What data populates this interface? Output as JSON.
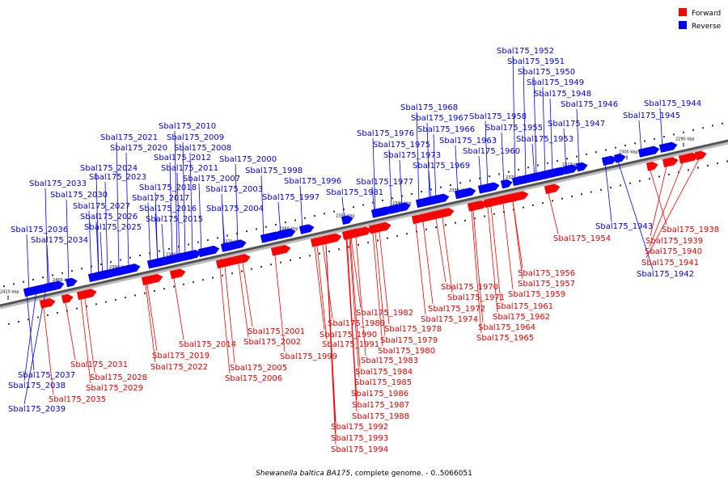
{
  "legend": {
    "forward_label": "Forward",
    "reverse_label": "Reverse",
    "forward_color": "#ff0000",
    "reverse_color": "#0000ff"
  },
  "caption": {
    "organism": "Shewanella baltica BA175",
    "rest": ", complete genome. - 0..5066051"
  },
  "ticks": [
    "2290 kbp",
    "2300 kbp",
    "2310 kbp",
    "2320 kbp",
    "2330 kbp",
    "2340 kbp",
    "2350 kbp",
    "2360 kbp",
    "2370 kbp",
    "2380 kbp",
    "2390 kbp",
    "2400 kbp",
    "2410 kbp"
  ],
  "genes_reverse": [
    "Sbal175_1942",
    "Sbal175_1943",
    "Sbal175_1944",
    "Sbal175_1945",
    "Sbal175_1946",
    "Sbal175_1947",
    "Sbal175_1948",
    "Sbal175_1949",
    "Sbal175_1950",
    "Sbal175_1951",
    "Sbal175_1952",
    "Sbal175_1953",
    "Sbal175_1955",
    "Sbal175_1958",
    "Sbal175_1960",
    "Sbal175_1963",
    "Sbal175_1966",
    "Sbal175_1967",
    "Sbal175_1968",
    "Sbal175_1969",
    "Sbal175_1973",
    "Sbal175_1975",
    "Sbal175_1976",
    "Sbal175_1977",
    "Sbal175_1981",
    "Sbal175_1996",
    "Sbal175_1997",
    "Sbal175_1998",
    "Sbal175_2000",
    "Sbal175_2003",
    "Sbal175_2004",
    "Sbal175_2007",
    "Sbal175_2008",
    "Sbal175_2009",
    "Sbal175_2010",
    "Sbal175_2011",
    "Sbal175_2012",
    "Sbal175_2015",
    "Sbal175_2016",
    "Sbal175_2017",
    "Sbal175_2018",
    "Sbal175_2020",
    "Sbal175_2021",
    "Sbal175_2023",
    "Sbal175_2024",
    "Sbal175_2025",
    "Sbal175_2026",
    "Sbal175_2027",
    "Sbal175_2030",
    "Sbal175_2033",
    "Sbal175_2034",
    "Sbal175_2036",
    "Sbal175_2037",
    "Sbal175_2038",
    "Sbal175_2039"
  ],
  "genes_forward": [
    "Sbal175_1938",
    "Sbal175_1939",
    "Sbal175_1940",
    "Sbal175_1941",
    "Sbal175_1954",
    "Sbal175_1956",
    "Sbal175_1957",
    "Sbal175_1959",
    "Sbal175_1961",
    "Sbal175_1962",
    "Sbal175_1964",
    "Sbal175_1965",
    "Sbal175_1970",
    "Sbal175_1971",
    "Sbal175_1972",
    "Sbal175_1974",
    "Sbal175_1978",
    "Sbal175_1979",
    "Sbal175_1980",
    "Sbal175_1982",
    "Sbal175_1983",
    "Sbal175_1984",
    "Sbal175_1985",
    "Sbal175_1986",
    "Sbal175_1987",
    "Sbal175_1988",
    "Sbal175_1989",
    "Sbal175_1990",
    "Sbal175_1991",
    "Sbal175_1992",
    "Sbal175_1993",
    "Sbal175_1994",
    "Sbal175_1999",
    "Sbal175_2001",
    "Sbal175_2002",
    "Sbal175_2005",
    "Sbal175_2006",
    "Sbal175_2014",
    "Sbal175_2019",
    "Sbal175_2022",
    "Sbal175_2028",
    "Sbal175_2029",
    "Sbal175_2031",
    "Sbal175_2035"
  ]
}
